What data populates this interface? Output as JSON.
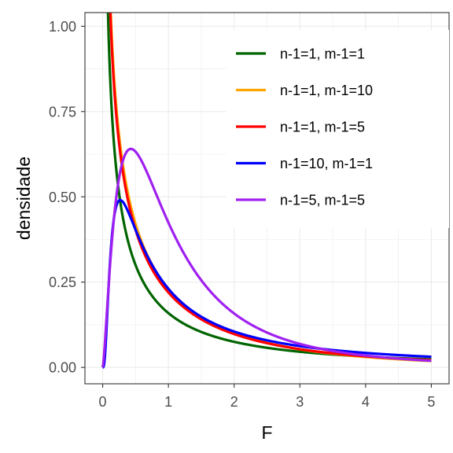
{
  "chart_data": {
    "type": "line",
    "title": "",
    "xlabel": "F",
    "ylabel": "densidade",
    "xlim": [
      -0.27,
      5.27
    ],
    "ylim": [
      -0.048,
      1.04
    ],
    "x_ticks": [
      "0",
      "1",
      "2",
      "3",
      "4",
      "5"
    ],
    "y_ticks": [
      "0.00",
      "0.25",
      "0.50",
      "0.75",
      "1.00"
    ],
    "grid": true,
    "legend_position": "top-right",
    "series": [
      {
        "name": "n-1=1, m-1=1",
        "color": "#006400",
        "df1": 1,
        "df2": 1
      },
      {
        "name": "n-1=1, m-1=10",
        "color": "#FFA500",
        "df1": 1,
        "df2": 10
      },
      {
        "name": "n-1=1, m-1=5",
        "color": "#FF0000",
        "df1": 1,
        "df2": 5
      },
      {
        "name": "n-1=10, m-1=1",
        "color": "#0000FF",
        "df1": 10,
        "df2": 1
      },
      {
        "name": "n-1=5, m-1=5",
        "color": "#A020F0",
        "df1": 5,
        "df2": 5
      }
    ],
    "x_range": [
      0,
      5
    ]
  }
}
